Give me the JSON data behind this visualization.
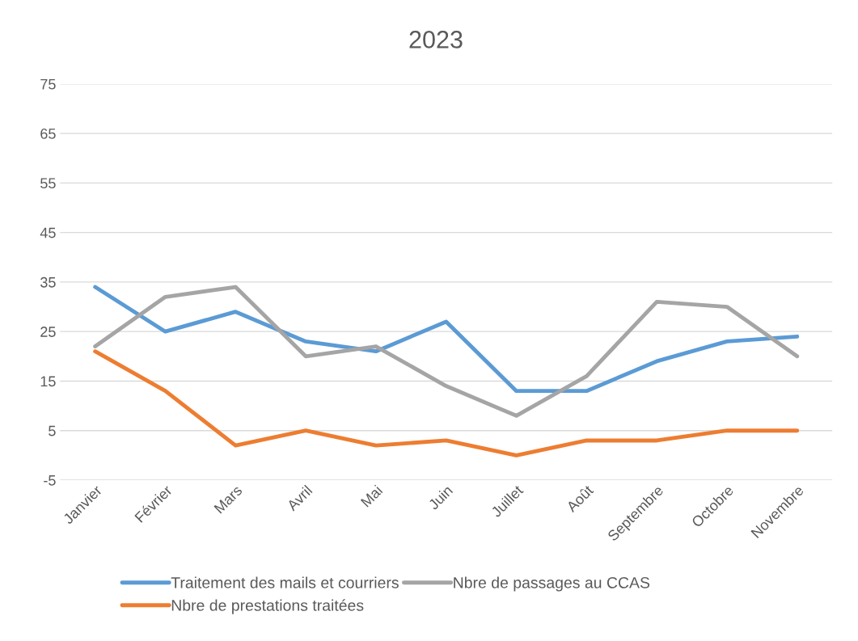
{
  "chart_data": {
    "type": "line",
    "title": "2023",
    "categories": [
      "Janvier",
      "Février",
      "Mars",
      "Avril",
      "Mai",
      "Juin",
      "Juillet",
      "Août",
      "Septembre",
      "Octobre",
      "Novembre"
    ],
    "series": [
      {
        "name": "Traitement des mails et courriers",
        "color": "#5b9bd5",
        "values": [
          34,
          25,
          29,
          23,
          21,
          27,
          13,
          13,
          19,
          23,
          24
        ]
      },
      {
        "name": "Nbre de prestations traitées",
        "color": "#ed7d31",
        "values": [
          21,
          13,
          2,
          5,
          2,
          3,
          0,
          3,
          3,
          5,
          5
        ]
      },
      {
        "name": "Nbre de passages au CCAS",
        "color": "#a5a5a5",
        "values": [
          22,
          32,
          34,
          20,
          22,
          14,
          8,
          16,
          31,
          30,
          20
        ]
      }
    ],
    "ylim": [
      -5,
      75
    ],
    "yticks": [
      -5,
      5,
      15,
      25,
      35,
      45,
      55,
      65,
      75
    ],
    "grid": "y",
    "legend": "bottom",
    "marker": "none",
    "line_style": "solid"
  }
}
